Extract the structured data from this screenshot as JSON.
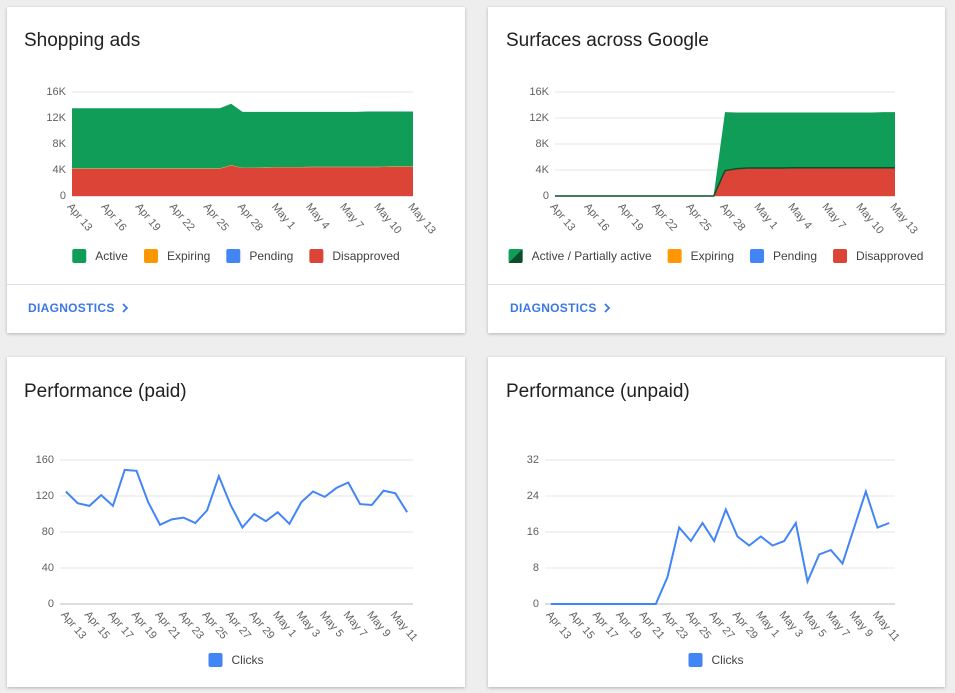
{
  "chart_data": [
    {
      "type": "area",
      "stacked": true,
      "title": "Shopping ads",
      "categories": [
        "Apr 13",
        null,
        null,
        "Apr 16",
        null,
        null,
        "Apr 19",
        null,
        null,
        "Apr 22",
        null,
        null,
        "Apr 25",
        null,
        null,
        "Apr 28",
        null,
        null,
        "May 1",
        null,
        null,
        "May 4",
        null,
        null,
        "May 7",
        null,
        null,
        "May 10",
        null,
        null,
        "May 13"
      ],
      "series": [
        {
          "name": "Active",
          "color": "#0f9d58",
          "values": [
            9250,
            9250,
            9250,
            9250,
            9250,
            9250,
            9250,
            9250,
            9250,
            9250,
            9250,
            9250,
            9250,
            9250,
            9450,
            8600,
            8600,
            8550,
            8500,
            8500,
            8500,
            8450,
            8450,
            8450,
            8450,
            8450,
            8500,
            8500,
            8450,
            8450,
            8450
          ]
        },
        {
          "name": "Expiring",
          "color": "#ff9800",
          "values": [
            50,
            50,
            50,
            50,
            50,
            50,
            50,
            50,
            50,
            50,
            50,
            50,
            50,
            50,
            50,
            50,
            50,
            50,
            50,
            50,
            50,
            50,
            50,
            50,
            50,
            50,
            50,
            50,
            50,
            50,
            50
          ]
        },
        {
          "name": "Pending",
          "color": "#4285f4",
          "values": [
            0,
            0,
            0,
            0,
            0,
            0,
            0,
            0,
            0,
            0,
            0,
            0,
            0,
            0,
            0,
            0,
            0,
            0,
            0,
            0,
            0,
            0,
            0,
            0,
            0,
            0,
            0,
            0,
            0,
            0,
            0
          ]
        },
        {
          "name": "Disapproved",
          "color": "#db4437",
          "values": [
            4200,
            4200,
            4200,
            4200,
            4200,
            4200,
            4200,
            4200,
            4200,
            4200,
            4200,
            4200,
            4200,
            4200,
            4700,
            4300,
            4300,
            4350,
            4400,
            4400,
            4400,
            4450,
            4450,
            4450,
            4450,
            4450,
            4450,
            4450,
            4500,
            4500,
            4500
          ]
        }
      ],
      "ylim": [
        0,
        16000
      ],
      "yticks": [
        0,
        {
          "value": 4000,
          "label": "4K"
        },
        {
          "value": 8000,
          "label": "8K"
        },
        {
          "value": 12000,
          "label": "12K"
        },
        {
          "value": 16000,
          "label": "16K"
        }
      ],
      "grid": true,
      "legend": "bottom"
    },
    {
      "type": "area",
      "stacked": true,
      "title": "Surfaces across Google",
      "categories": [
        "Apr 13",
        null,
        null,
        "Apr 16",
        null,
        null,
        "Apr 19",
        null,
        null,
        "Apr 22",
        null,
        null,
        "Apr 25",
        null,
        null,
        "Apr 28",
        null,
        null,
        "May 1",
        null,
        null,
        "May 4",
        null,
        null,
        "May 7",
        null,
        null,
        "May 10",
        null,
        null,
        "May 13"
      ],
      "series": [
        {
          "name": "Active / Partially active",
          "color": "#0f9d58",
          "edge_color": "#0d4d2a",
          "values": [
            80,
            80,
            80,
            80,
            80,
            80,
            80,
            80,
            80,
            80,
            80,
            80,
            80,
            80,
            80,
            9000,
            8650,
            8550,
            8550,
            8550,
            8550,
            8500,
            8500,
            8500,
            8500,
            8500,
            8500,
            8500,
            8500,
            8550,
            8550
          ]
        },
        {
          "name": "Expiring",
          "color": "#ff9800",
          "values": [
            0,
            0,
            0,
            0,
            0,
            0,
            0,
            0,
            0,
            0,
            0,
            0,
            0,
            0,
            0,
            0,
            0,
            0,
            0,
            0,
            0,
            0,
            0,
            0,
            0,
            0,
            0,
            0,
            0,
            0,
            0
          ]
        },
        {
          "name": "Pending",
          "color": "#4285f4",
          "values": [
            0,
            0,
            0,
            0,
            0,
            0,
            0,
            0,
            0,
            0,
            0,
            0,
            0,
            0,
            0,
            0,
            0,
            0,
            0,
            0,
            0,
            0,
            0,
            0,
            0,
            0,
            0,
            0,
            0,
            0,
            0
          ]
        },
        {
          "name": "Disapproved",
          "color": "#db4437",
          "values": [
            0,
            0,
            0,
            0,
            0,
            0,
            0,
            0,
            0,
            0,
            0,
            0,
            0,
            0,
            0,
            3900,
            4200,
            4300,
            4300,
            4300,
            4300,
            4350,
            4350,
            4350,
            4350,
            4350,
            4350,
            4350,
            4350,
            4350,
            4350
          ]
        }
      ],
      "ylim": [
        0,
        16000
      ],
      "yticks": [
        0,
        {
          "value": 4000,
          "label": "4K"
        },
        {
          "value": 8000,
          "label": "8K"
        },
        {
          "value": 12000,
          "label": "12K"
        },
        {
          "value": 16000,
          "label": "16K"
        }
      ],
      "grid": true,
      "legend": "bottom"
    },
    {
      "type": "line",
      "title": "Performance (paid)",
      "categories": [
        "Apr 13",
        null,
        "Apr 15",
        null,
        "Apr 17",
        null,
        "Apr 19",
        null,
        "Apr 21",
        null,
        "Apr 23",
        null,
        "Apr 25",
        null,
        "Apr 27",
        null,
        "Apr 29",
        null,
        "May 1",
        null,
        "May 3",
        null,
        "May 5",
        null,
        "May 7",
        null,
        "May 9",
        null,
        "May 11",
        null
      ],
      "series": [
        {
          "name": "Clicks",
          "color": "#4285f4",
          "values": [
            125,
            112,
            109,
            121,
            109,
            149,
            148,
            113,
            88,
            94,
            96,
            90,
            104,
            142,
            110,
            85,
            100,
            92,
            102,
            89,
            113,
            125,
            119,
            129,
            135,
            111,
            110,
            126,
            123,
            102
          ]
        }
      ],
      "ylim": [
        0,
        160
      ],
      "yticks": [
        0,
        40,
        80,
        120,
        160
      ],
      "grid": true,
      "legend": "bottom"
    },
    {
      "type": "line",
      "title": "Performance (unpaid)",
      "categories": [
        "Apr 13",
        null,
        "Apr 15",
        null,
        "Apr 17",
        null,
        "Apr 19",
        null,
        "Apr 21",
        null,
        "Apr 23",
        null,
        "Apr 25",
        null,
        "Apr 27",
        null,
        "Apr 29",
        null,
        "May 1",
        null,
        "May 3",
        null,
        "May 5",
        null,
        "May 7",
        null,
        "May 9",
        null,
        "May 11",
        null
      ],
      "series": [
        {
          "name": "Clicks",
          "color": "#4285f4",
          "values": [
            0,
            0,
            0,
            0,
            0,
            0,
            0,
            0,
            0,
            0,
            6,
            17,
            14,
            18,
            14,
            21,
            15,
            13,
            15,
            13,
            14,
            18,
            5,
            11,
            12,
            9,
            17,
            25,
            17,
            18
          ]
        }
      ],
      "ylim": [
        0,
        32
      ],
      "yticks": [
        0,
        8,
        16,
        24,
        32
      ],
      "grid": true,
      "legend": "bottom"
    }
  ],
  "links": [
    "DIAGNOSTICS",
    "DIAGNOSTICS"
  ]
}
